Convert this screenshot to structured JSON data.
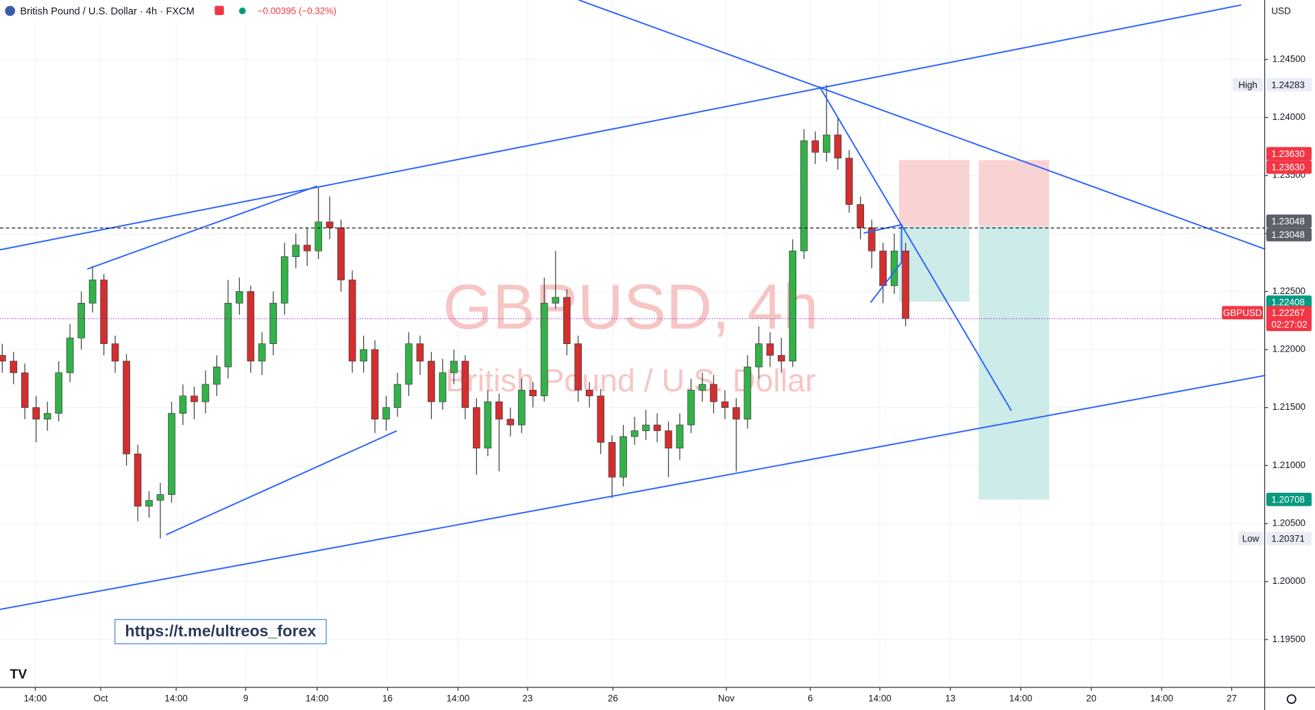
{
  "header": {
    "symbol": "British Pound / U.S. Dollar · 4h · FXCM",
    "change": "−0.00395 (−0.32%)",
    "currency": "USD"
  },
  "watermark": {
    "title": "GBPUSD, 4h",
    "subtitle": "British Pound / U.S. Dollar"
  },
  "link": "https://t.me/ultreos_forex",
  "chart_data": {
    "type": "candlestick",
    "x": [
      0,
      2.5,
      5,
      7.5,
      10,
      12.5,
      15,
      17.5,
      20,
      22.5,
      25,
      27.5,
      30,
      32.5,
      35,
      37.5,
      40,
      42.5,
      45,
      47.5,
      50,
      52.5,
      55,
      57.5,
      60,
      62.5,
      65,
      67.5,
      70,
      72.5,
      75,
      77.5,
      80,
      82.5,
      85,
      87.5,
      90,
      92.5,
      95,
      97.5,
      100,
      102.5,
      105,
      107.5,
      110,
      112.5,
      115,
      117.5,
      120,
      122.5,
      125,
      127.5,
      130,
      132.5,
      135,
      137.5,
      140,
      142.5,
      145,
      147.5,
      150,
      152.5,
      155,
      157.5,
      160,
      162.5,
      165,
      167.5,
      170,
      172.5,
      175,
      177.5,
      180,
      182.5,
      185,
      187.5,
      190,
      192.5,
      195,
      197.5,
      200
    ],
    "open": [
      1.2195,
      1.219,
      1.218,
      1.215,
      1.214,
      1.2145,
      1.218,
      1.221,
      1.224,
      1.226,
      1.2205,
      1.219,
      1.211,
      1.2065,
      1.207,
      1.2075,
      1.2145,
      1.216,
      1.2155,
      1.217,
      1.2185,
      1.224,
      1.225,
      1.219,
      1.2205,
      1.224,
      1.228,
      1.229,
      1.2285,
      1.231,
      1.2305,
      1.226,
      1.219,
      1.22,
      1.214,
      1.215,
      1.217,
      1.2205,
      1.219,
      1.2155,
      1.218,
      1.219,
      1.215,
      1.2115,
      1.2155,
      1.214,
      1.2135,
      1.2165,
      1.216,
      1.224,
      1.2245,
      1.2205,
      1.2165,
      1.216,
      1.212,
      1.209,
      1.2125,
      1.213,
      1.2135,
      1.213,
      1.2115,
      1.2135,
      1.2165,
      1.217,
      1.2155,
      1.215,
      1.214,
      1.2185,
      1.2205,
      1.2195,
      1.219,
      1.2285,
      1.238,
      1.237,
      1.2385,
      1.2365,
      1.2325,
      1.2305,
      1.2285,
      1.2255,
      1.2285
    ],
    "high": [
      1.2205,
      1.2198,
      1.2188,
      1.216,
      1.2155,
      1.219,
      1.2222,
      1.225,
      1.2272,
      1.2265,
      1.2212,
      1.2196,
      1.2118,
      1.2078,
      1.2085,
      1.2155,
      1.217,
      1.2168,
      1.2182,
      1.2195,
      1.226,
      1.2262,
      1.2255,
      1.2215,
      1.225,
      1.2292,
      1.23,
      1.2305,
      1.234,
      1.2332,
      1.2312,
      1.2268,
      1.2212,
      1.2208,
      1.216,
      1.218,
      1.2215,
      1.2212,
      1.2198,
      1.2192,
      1.22,
      1.2195,
      1.2158,
      1.2165,
      1.2162,
      1.215,
      1.2175,
      1.2172,
      1.2262,
      1.2285,
      1.2252,
      1.2212,
      1.2172,
      1.2166,
      1.2126,
      1.2135,
      1.2142,
      1.2148,
      1.2145,
      1.2138,
      1.2145,
      1.2175,
      1.218,
      1.2178,
      1.2165,
      1.2158,
      1.2195,
      1.222,
      1.2215,
      1.221,
      1.2295,
      1.239,
      1.2388,
      1.24283,
      1.24,
      1.2372,
      1.2332,
      1.2312,
      1.2292,
      1.23,
      1.2292
    ],
    "low": [
      1.218,
      1.217,
      1.214,
      1.212,
      1.213,
      1.2138,
      1.2172,
      1.22,
      1.2232,
      1.2195,
      1.218,
      1.21,
      1.2052,
      1.2055,
      1.20371,
      1.2068,
      1.2135,
      1.214,
      1.2145,
      1.216,
      1.2175,
      1.223,
      1.218,
      1.2178,
      1.2195,
      1.223,
      1.227,
      1.2272,
      1.2278,
      1.2295,
      1.225,
      1.218,
      1.218,
      1.2128,
      1.213,
      1.2142,
      1.216,
      1.2178,
      1.214,
      1.2148,
      1.217,
      1.214,
      1.2092,
      1.2108,
      1.2095,
      1.2125,
      1.2128,
      1.215,
      1.2155,
      1.2235,
      1.2195,
      1.2155,
      1.215,
      1.211,
      1.2072,
      1.2082,
      1.2118,
      1.2122,
      1.212,
      1.209,
      1.2105,
      1.2128,
      1.2155,
      1.2145,
      1.214,
      1.2095,
      1.2132,
      1.2175,
      1.2185,
      1.218,
      1.2185,
      1.2278,
      1.236,
      1.2362,
      1.2355,
      1.2318,
      1.2295,
      1.227,
      1.224,
      1.2248,
      1.222
    ],
    "close": [
      1.219,
      1.218,
      1.215,
      1.214,
      1.2145,
      1.218,
      1.221,
      1.224,
      1.226,
      1.2205,
      1.219,
      1.211,
      1.2065,
      1.207,
      1.2075,
      1.2145,
      1.216,
      1.2155,
      1.217,
      1.2185,
      1.224,
      1.225,
      1.219,
      1.2205,
      1.224,
      1.228,
      1.229,
      1.2285,
      1.231,
      1.2305,
      1.226,
      1.219,
      1.22,
      1.214,
      1.215,
      1.217,
      1.2205,
      1.219,
      1.2155,
      1.218,
      1.219,
      1.215,
      1.2115,
      1.2155,
      1.214,
      1.2135,
      1.2165,
      1.216,
      1.224,
      1.2245,
      1.2205,
      1.2165,
      1.216,
      1.212,
      1.209,
      1.2125,
      1.213,
      1.2135,
      1.213,
      1.2115,
      1.2135,
      1.2165,
      1.217,
      1.2155,
      1.215,
      1.214,
      1.2185,
      1.2205,
      1.2195,
      1.219,
      1.2285,
      1.238,
      1.237,
      1.2385,
      1.2365,
      1.2325,
      1.2305,
      1.2285,
      1.2255,
      1.2285,
      1.22267
    ],
    "up_color": "#33b249",
    "down_color": "#d32f2f",
    "wick_color": "#3a3a3a",
    "xlim": [
      -0.5,
      279.5
    ],
    "ylim": [
      1.25013,
      1.19088
    ],
    "xticks": [
      {
        "value": 7.3,
        "label": "14:00"
      },
      {
        "value": 21.8,
        "label": "Oct"
      },
      {
        "value": 38.5,
        "label": "14:00"
      },
      {
        "value": 53.9,
        "label": "9"
      },
      {
        "value": 69.7,
        "label": "14:00"
      },
      {
        "value": 85.3,
        "label": "16"
      },
      {
        "value": 100.9,
        "label": "14:00"
      },
      {
        "value": 116.3,
        "label": "23"
      },
      {
        "value": 135.2,
        "label": "26"
      },
      {
        "value": 160.3,
        "label": "Nov"
      },
      {
        "value": 178.9,
        "label": "6"
      },
      {
        "value": 194.3,
        "label": "14:00"
      },
      {
        "value": 209.9,
        "label": "13"
      },
      {
        "value": 225.5,
        "label": "14:00"
      },
      {
        "value": 241.1,
        "label": "20"
      },
      {
        "value": 256.7,
        "label": "14:00"
      },
      {
        "value": 272.2,
        "label": "27"
      }
    ],
    "yticks": [
      {
        "value": 1.245,
        "label": "1.24500"
      },
      {
        "value": 1.24,
        "label": "1.24000"
      },
      {
        "value": 1.235,
        "label": "1.23500"
      },
      {
        "value": 1.23,
        "label": "1.23000"
      },
      {
        "value": 1.225,
        "label": "1.22500"
      },
      {
        "value": 1.22,
        "label": "1.22000"
      },
      {
        "value": 1.215,
        "label": "1.21500"
      },
      {
        "value": 1.21,
        "label": "1.21000"
      },
      {
        "value": 1.205,
        "label": "1.20500"
      },
      {
        "value": 1.2,
        "label": "1.20000"
      },
      {
        "value": 1.195,
        "label": "1.19500"
      }
    ],
    "grid": true,
    "price_labels": [
      {
        "value": 1.24283,
        "label": "1.24283",
        "tag": "High",
        "bg": "#e9edf5",
        "fg": "#131722"
      },
      {
        "value": 1.2363,
        "label": "1.23630",
        "bg": "#f23645",
        "fg": "#ffffff"
      },
      {
        "value": 1.2363,
        "label": "1.23630",
        "bg": "#f23645",
        "fg": "#ffffff"
      },
      {
        "value": 1.23048,
        "label": "1.23048",
        "bg": "#5d606b",
        "fg": "#ffffff",
        "line": "dashed"
      },
      {
        "value": 1.23048,
        "label": "1.23048",
        "bg": "#5d606b",
        "fg": "#ffffff"
      },
      {
        "value": 1.22408,
        "label": "1.22408",
        "bg": "#089981",
        "fg": "#ffffff"
      },
      {
        "value": 1.22267,
        "label": "1.22267",
        "tag": "GBPUSD",
        "sub": "02:27:02",
        "bg": "#f23645",
        "fg": "#ffffff",
        "line": "dotted"
      },
      {
        "value": 1.20708,
        "label": "1.20708",
        "bg": "#089981",
        "fg": "#ffffff"
      },
      {
        "value": 1.20371,
        "label": "1.20371",
        "tag": "Low",
        "bg": "#e9edf5",
        "fg": "#131722"
      }
    ]
  }
}
